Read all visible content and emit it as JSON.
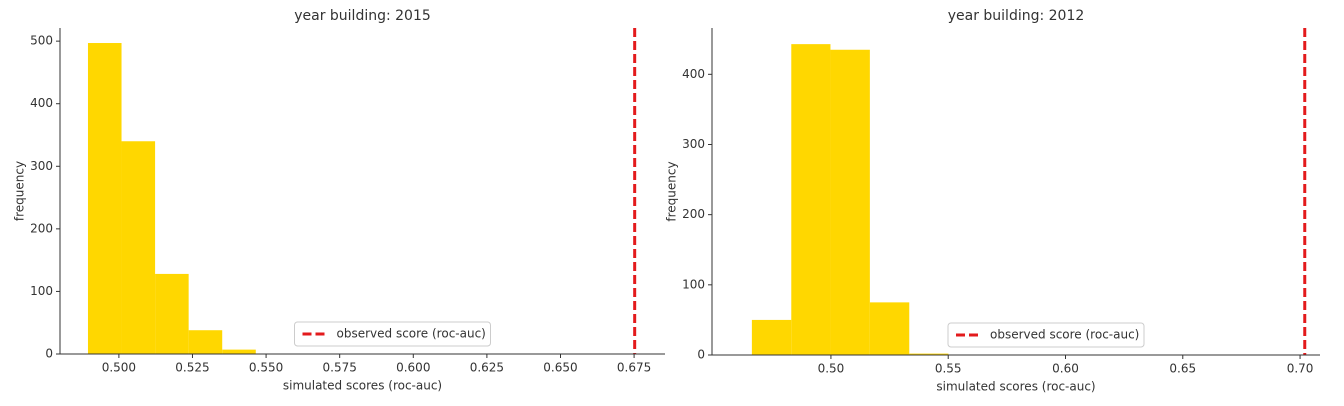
{
  "chart_data": [
    {
      "type": "histogram",
      "title": "year building: 2015",
      "xlabel": "simulated scores (roc-auc)",
      "ylabel": "frequency",
      "bins": [
        0.4895,
        0.5009,
        0.5123,
        0.5237,
        0.5351,
        0.5465
      ],
      "counts": [
        497,
        340,
        128,
        38,
        7
      ],
      "color": "#ffd700",
      "observed": {
        "name": "observed score (roc-auc)",
        "value": 0.6752,
        "color": "#e31a1c"
      },
      "xlim": [
        0.48,
        0.6855
      ],
      "ylim": [
        0,
        521
      ],
      "xticks": [
        {
          "value": 0.5,
          "label": "0.500"
        },
        0.525,
        {
          "value": 0.55,
          "label": "0.550"
        },
        0.575,
        {
          "value": 0.6,
          "label": "0.600"
        },
        0.625,
        {
          "value": 0.65,
          "label": "0.650"
        },
        0.675
      ],
      "yticks": [
        0,
        100,
        200,
        300,
        400,
        500
      ],
      "legend": "lower center"
    },
    {
      "type": "histogram",
      "title": "year building: 2012",
      "xlabel": "simulated scores (roc-auc)",
      "ylabel": "frequency",
      "bins": [
        0.4663,
        0.4831,
        0.4998,
        0.5166,
        0.5334,
        0.5501
      ],
      "counts": [
        50,
        443,
        435,
        75,
        2
      ],
      "color": "#ffd700",
      "observed": {
        "name": "observed score (roc-auc)",
        "value": 0.702,
        "color": "#e31a1c"
      },
      "xlim": [
        0.4493,
        0.7085
      ],
      "ylim": [
        0,
        466
      ],
      "xticks": [
        {
          "value": 0.5,
          "label": "0.50"
        },
        0.55,
        {
          "value": 0.6,
          "label": "0.60"
        },
        0.65,
        {
          "value": 0.7,
          "label": "0.70"
        }
      ],
      "yticks": [
        0,
        100,
        200,
        300,
        400
      ],
      "legend": "lower center"
    }
  ]
}
